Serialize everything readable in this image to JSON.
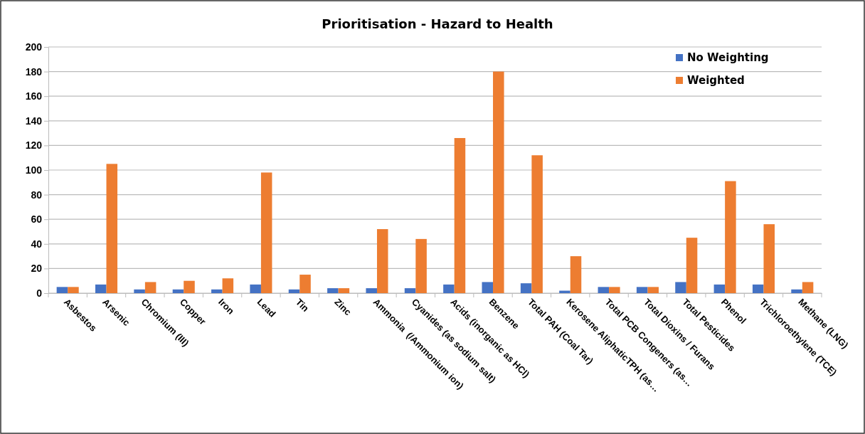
{
  "chart_data": {
    "type": "bar",
    "title": "Prioritisation - Hazard to Health",
    "categories": [
      "Asbestos",
      "Arsenic",
      "Chromium (III)",
      "Copper",
      "Iron",
      "Lead",
      "Tin",
      "Zinc",
      "Ammonia  (/Ammonium ion)",
      "Cyanides (as sodium salt)",
      "Acids (inorganic as HCl)",
      "Benzene",
      "Total PAH (Coal Tar)",
      "Kerosene AliphaticTPH (as…",
      "Total PCB Congeners (as…",
      "Total Dioxins / Furans",
      "Total Pesticides",
      "Phenol",
      "Trichloroethylene (TCE)",
      "Methane (LNG)"
    ],
    "series": [
      {
        "name": "No Weighting",
        "color": "#4472c4",
        "values": [
          5,
          7,
          3,
          3,
          3,
          7,
          3,
          4,
          4,
          4,
          7,
          9,
          8,
          2,
          5,
          5,
          9,
          7,
          7,
          3
        ]
      },
      {
        "name": "Weighted",
        "color": "#ed7d31",
        "values": [
          5,
          105,
          9,
          10,
          12,
          98,
          15,
          4,
          52,
          44,
          126,
          180,
          112,
          30,
          5,
          5,
          45,
          91,
          56,
          9
        ]
      }
    ],
    "ylim": [
      0,
      200
    ],
    "yticks": [
      0,
      20,
      40,
      60,
      80,
      100,
      120,
      140,
      160,
      180,
      200
    ],
    "grid": "y",
    "legend": "top right"
  }
}
